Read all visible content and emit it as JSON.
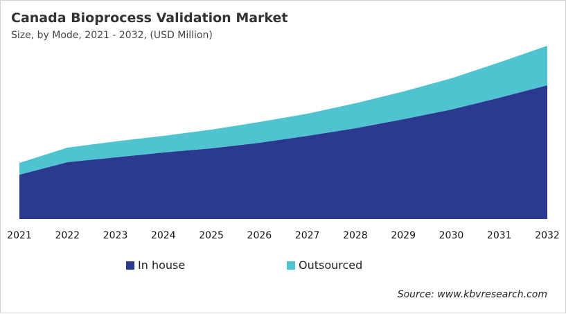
{
  "chart_data": {
    "type": "area",
    "stacked": true,
    "title": "Canada Bioprocess Validation Market",
    "subtitle": "Size, by Mode, 2021 - 2032, (USD Million)",
    "categories": [
      "2021",
      "2022",
      "2023",
      "2024",
      "2025",
      "2026",
      "2027",
      "2028",
      "2029",
      "2030",
      "2031",
      "2032"
    ],
    "series": [
      {
        "name": "In house",
        "color": "#2b3990",
        "values": [
          64,
          82,
          89,
          96,
          102,
          110,
          120,
          131,
          144,
          158,
          175,
          193
        ]
      },
      {
        "name": "Outsourced",
        "color": "#4fc3cf",
        "values": [
          17,
          21,
          23,
          24,
          27,
          30,
          32,
          36,
          40,
          45,
          51,
          57
        ]
      }
    ],
    "ylim": [
      0,
      250
    ],
    "y_axis_shown": false,
    "grid": false,
    "legend_position": "bottom"
  },
  "source": "Source: www.kbvresearch.com"
}
